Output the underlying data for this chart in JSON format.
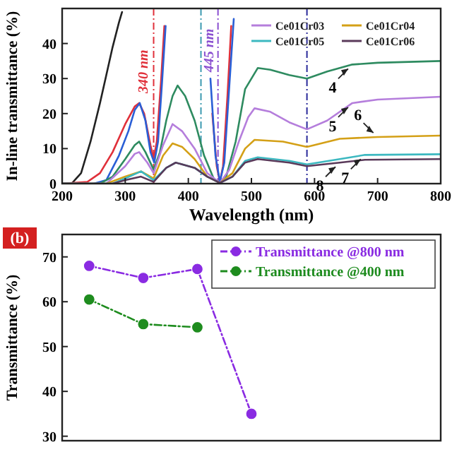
{
  "chart_data": [
    {
      "type": "line",
      "xlabel": "Wavelength (nm)",
      "ylabel": "In-line transmittance (%)",
      "xlim": [
        200,
        800
      ],
      "ylim": [
        0,
        50
      ],
      "xticks": [
        200,
        300,
        400,
        500,
        600,
        700,
        800
      ],
      "yticks": [
        0,
        10,
        20,
        30,
        40
      ],
      "legend": "top right",
      "line_style": "solid",
      "series": [
        {
          "color": "#222222",
          "x": [
            200,
            215,
            230,
            245,
            260,
            270,
            280,
            290,
            295
          ],
          "values": [
            0,
            0,
            3,
            12,
            23,
            31,
            39,
            46,
            49
          ]
        },
        {
          "color": "#e0303a",
          "x": [
            200,
            240,
            260,
            280,
            300,
            315,
            322,
            330,
            340,
            345,
            350,
            357,
            362,
            400,
            438,
            445,
            450,
            455,
            462,
            468
          ],
          "values": [
            0,
            0.5,
            3,
            9,
            17,
            22,
            23,
            20,
            11,
            7,
            12,
            30,
            45,
            null,
            20,
            5,
            0.5,
            5,
            25,
            45
          ]
        },
        {
          "color": "#2a5fd6",
          "x": [
            200,
            250,
            270,
            290,
            305,
            315,
            323,
            332,
            340,
            346,
            352,
            358,
            364,
            400,
            435,
            443,
            450,
            457,
            465,
            472
          ],
          "values": [
            0,
            0,
            1,
            8,
            15,
            21,
            23,
            18,
            9,
            6,
            12,
            28,
            45,
            null,
            30,
            8,
            0.5,
            6,
            28,
            47
          ]
        },
        {
          "color": "#2e8b60",
          "x": [
            200,
            260,
            280,
            300,
            315,
            322,
            332,
            345,
            355,
            365,
            375,
            383,
            395,
            410,
            425,
            440,
            450,
            460,
            475,
            490,
            510,
            530,
            560,
            588,
            620,
            660,
            700,
            800
          ],
          "values": [
            0,
            0,
            2,
            7,
            11,
            12,
            9,
            4,
            9,
            18,
            25,
            28,
            25,
            18,
            8,
            1.5,
            0.2,
            2,
            12,
            27,
            33,
            32.5,
            31,
            30,
            32,
            34,
            34.5,
            35
          ]
        },
        {
          "name": "Ce01Cr03",
          "color": "#b57edc",
          "x": [
            200,
            270,
            300,
            315,
            322,
            335,
            345,
            360,
            375,
            390,
            410,
            430,
            450,
            465,
            480,
            495,
            505,
            530,
            560,
            588,
            620,
            660,
            700,
            800
          ],
          "values": [
            0,
            0,
            5,
            8.5,
            9,
            6,
            3,
            11,
            17,
            15,
            10,
            3,
            0.2,
            4,
            12,
            19,
            21.5,
            20.5,
            17.5,
            15.5,
            18,
            23,
            24,
            24.8
          ]
        },
        {
          "name": "Ce01Cr04",
          "color": "#d4a017",
          "x": [
            200,
            270,
            300,
            325,
            345,
            360,
            375,
            390,
            410,
            430,
            450,
            470,
            490,
            505,
            550,
            588,
            640,
            700,
            800
          ],
          "values": [
            0,
            0,
            2,
            3.5,
            1.5,
            8,
            11.5,
            10.5,
            7,
            2,
            0.2,
            3,
            10,
            12.5,
            12,
            10.5,
            12.8,
            13.3,
            13.7
          ]
        },
        {
          "name": "Ce01Cr05",
          "color": "#3cb8c0",
          "x": [
            200,
            280,
            300,
            325,
            345,
            365,
            380,
            410,
            430,
            450,
            470,
            490,
            510,
            560,
            588,
            640,
            680,
            800
          ],
          "values": [
            0,
            0,
            1.5,
            3.5,
            1,
            4.5,
            6,
            4.5,
            2,
            0.2,
            2,
            6.5,
            7.5,
            6.5,
            5.5,
            7,
            8.2,
            8.4
          ]
        },
        {
          "name": "Ce01Cr06",
          "color": "#5a3a5a",
          "x": [
            200,
            280,
            300,
            325,
            345,
            365,
            380,
            410,
            430,
            450,
            470,
            490,
            510,
            560,
            588,
            640,
            680,
            800
          ],
          "values": [
            0,
            0,
            1,
            2,
            0.5,
            4.5,
            6,
            4.5,
            2,
            0.2,
            2,
            6,
            7,
            6,
            5,
            6,
            6.8,
            7
          ]
        }
      ],
      "ref_lines": [
        {
          "axis": "x",
          "value": 345,
          "color": "#e0303a",
          "line_style": "dashed"
        },
        {
          "axis": "x",
          "value": 420,
          "color": "#3c9ab0",
          "line_style": "dashed"
        },
        {
          "axis": "x",
          "value": 447,
          "color": "#8a4fd0",
          "line_style": "dashed"
        },
        {
          "axis": "x",
          "value": 588,
          "color": "#2a2a9a",
          "line_style": "dashed"
        }
      ],
      "annotations": [
        {
          "text": "340 nm",
          "x": 335,
          "y": 32
        },
        {
          "text": "445 nm",
          "x": 440,
          "y": 38
        },
        {
          "text": "4",
          "x": 660,
          "y": 34
        },
        {
          "text": "5",
          "x": 660,
          "y": 23
        },
        {
          "text": "6",
          "x": 700,
          "y": 13.3
        },
        {
          "text": "7",
          "x": 680,
          "y": 8.2
        },
        {
          "text": "8",
          "x": 640,
          "y": 6
        }
      ]
    },
    {
      "type": "line",
      "ylabel": "Transmittance (%)",
      "categories": [
        null,
        null,
        null,
        null,
        null,
        null,
        null
      ],
      "ylim": [
        29,
        75
      ],
      "yticks": [
        30,
        40,
        50,
        60,
        70
      ],
      "tick_labels": "y",
      "legend": "top right",
      "marker": "circle",
      "line_style": "dashed",
      "series": [
        {
          "name": "Transmittance @800 nm",
          "color": "#8a2be2",
          "values": [
            68,
            65.3,
            67.3,
            35,
            null,
            null,
            null
          ]
        },
        {
          "name": "Transmittance @400 nm",
          "color": "#1e8c1e",
          "values": [
            60.5,
            55,
            54.3,
            null,
            null,
            null,
            null
          ]
        }
      ],
      "annotations": [
        "(b)"
      ]
    }
  ]
}
